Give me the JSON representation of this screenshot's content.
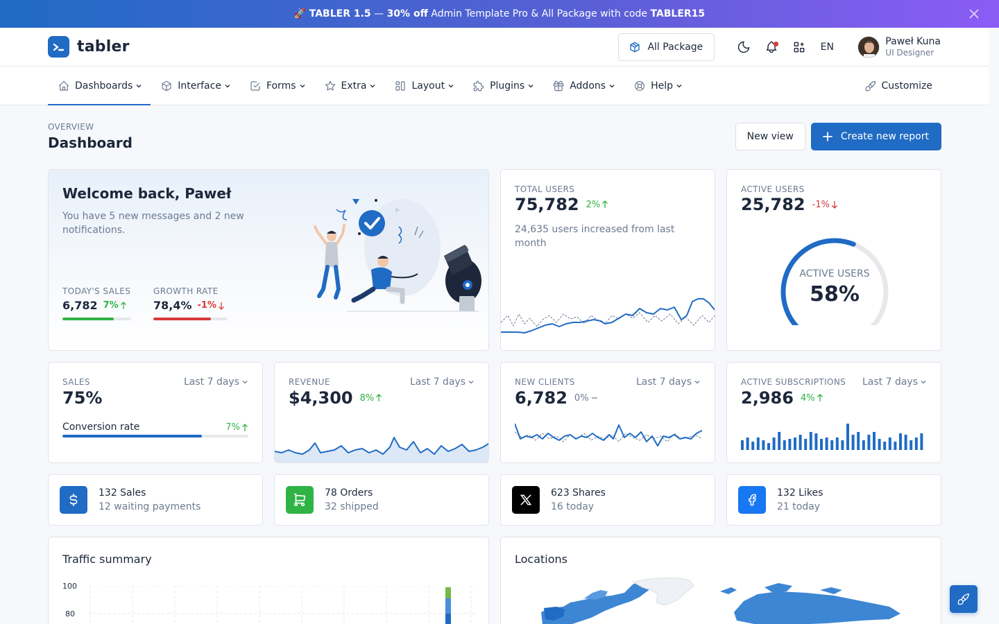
{
  "banner": {
    "icon": "rocket-emoji",
    "emoji": "🚀",
    "product": "TABLER 1.5",
    "dash": " — ",
    "offer": "30% off",
    "text": " Admin Template Pro & All Package with code ",
    "code": "TABLER15"
  },
  "header": {
    "brand": "tabler",
    "package_button": "All Package",
    "language": "EN",
    "user": {
      "name": "Paweł Kuna",
      "role": "UI Designer"
    }
  },
  "nav": {
    "items": [
      {
        "label": "Dashboards",
        "icon": "home-icon",
        "active": true
      },
      {
        "label": "Interface",
        "icon": "package-icon"
      },
      {
        "label": "Forms",
        "icon": "checkbox-icon"
      },
      {
        "label": "Extra",
        "icon": "star-icon"
      },
      {
        "label": "Layout",
        "icon": "layout-icon"
      },
      {
        "label": "Plugins",
        "icon": "puzzle-icon"
      },
      {
        "label": "Addons",
        "icon": "gift-icon"
      },
      {
        "label": "Help",
        "icon": "lifebuoy-icon"
      }
    ],
    "customize": "Customize"
  },
  "page": {
    "pretitle": "OVERVIEW",
    "title": "Dashboard",
    "new_view": "New view",
    "create_report": "Create new report"
  },
  "welcome": {
    "title": "Welcome back, Paweł",
    "message": "You have 5 new messages and 2 new notifications.",
    "sales_label": "TODAY'S SALES",
    "sales_value": "6,782",
    "sales_delta": "7%",
    "sales_progress": 0.75,
    "growth_label": "GROWTH RATE",
    "growth_value": "78,4%",
    "growth_delta": "-1%",
    "growth_progress": 0.78
  },
  "total_users": {
    "label": "TOTAL USERS",
    "value": "75,782",
    "delta": "2%",
    "description": "24,635 users increased from last month"
  },
  "active_users": {
    "label": "ACTIVE USERS",
    "value": "25,782",
    "delta": "-1%",
    "gauge_label": "ACTIVE USERS",
    "gauge_value": "58%",
    "gauge_fraction": 0.58
  },
  "sales": {
    "label": "SALES",
    "period": "Last 7 days",
    "value": "75%",
    "conversion_label": "Conversion rate",
    "conversion_delta": "7%",
    "progress": 0.75
  },
  "revenue": {
    "label": "REVENUE",
    "period": "Last 7 days",
    "value": "$4,300",
    "delta": "8%"
  },
  "new_clients": {
    "label": "NEW CLIENTS",
    "period": "Last 7 days",
    "value": "6,782",
    "delta": "0%"
  },
  "subscriptions": {
    "label": "ACTIVE SUBSCRIPTIONS",
    "period": "Last 7 days",
    "value": "2,986",
    "delta": "4%"
  },
  "mini_stats": [
    {
      "icon": "currency-dollar-icon",
      "color": "#206bc4",
      "line1": "132 Sales",
      "line2": "12 waiting payments"
    },
    {
      "icon": "shopping-cart-icon",
      "color": "#2fb344",
      "line1": "78 Orders",
      "line2": "32 shipped"
    },
    {
      "icon": "brand-x-icon",
      "color": "#000000",
      "line1": "623 Shares",
      "line2": "16 today"
    },
    {
      "icon": "brand-facebook-icon",
      "color": "#1877f2",
      "line1": "132 Likes",
      "line2": "21 today"
    }
  ],
  "traffic": {
    "title": "Traffic summary",
    "y_ticks": [
      "100",
      "80"
    ]
  },
  "locations": {
    "title": "Locations"
  },
  "colors": {
    "primary": "#206bc4",
    "success": "#2fb344",
    "danger": "#d63939",
    "muted": "#6c7a91"
  }
}
